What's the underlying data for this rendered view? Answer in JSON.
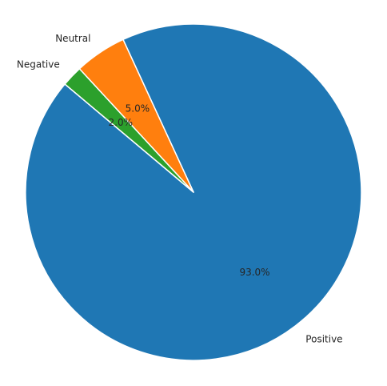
{
  "chart_data": {
    "type": "pie",
    "title": "",
    "start_angle_deg": 140,
    "direction": "counterclockwise",
    "legend": "none",
    "slices": [
      {
        "label": "Positive",
        "value": 93.0,
        "pct_text": "93.0%",
        "color": "#1f77b4"
      },
      {
        "label": "Neutral",
        "value": 5.0,
        "pct_text": "5.0%",
        "color": "#ff7f0e"
      },
      {
        "label": "Negative",
        "value": 2.0,
        "pct_text": "2.0%",
        "color": "#2ca02c"
      }
    ]
  }
}
